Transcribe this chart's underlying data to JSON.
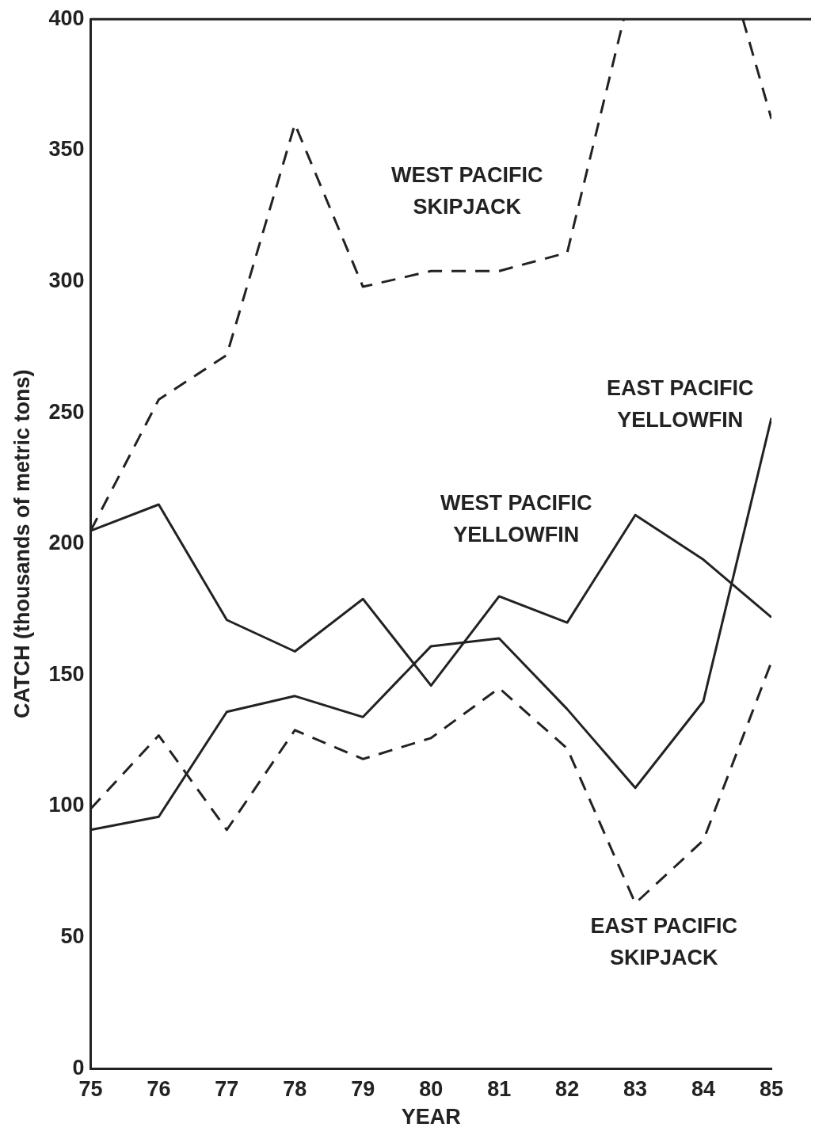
{
  "chart_data": {
    "type": "line",
    "xlabel": "YEAR",
    "ylabel": "CATCH (thousands of metric tons)",
    "x": [
      75,
      76,
      77,
      78,
      79,
      80,
      81,
      82,
      83,
      84,
      85
    ],
    "series": [
      {
        "name": "WEST PACIFIC SKIPJACK",
        "color": "#222222",
        "line_style": "dashed",
        "x": [
          75,
          76,
          77,
          78,
          79,
          80,
          81,
          82,
          82.83,
          83.7,
          84.58,
          85
        ],
        "values": [
          205,
          255,
          272,
          360,
          298,
          304,
          304,
          311,
          400,
          null,
          400,
          362
        ]
      },
      {
        "name": "EAST PACIFIC YELLOWFIN",
        "color": "#222222",
        "line_style": "solid",
        "values": [
          91,
          96,
          136,
          142,
          134,
          161,
          164,
          137,
          107,
          140,
          248
        ]
      },
      {
        "name": "WEST PACIFIC YELLOWFIN",
        "color": "#222222",
        "line_style": "solid",
        "values": [
          205,
          215,
          171,
          159,
          179,
          146,
          180,
          170,
          211,
          194,
          172
        ]
      },
      {
        "name": "EAST PACIFIC SKIPJACK",
        "color": "#222222",
        "line_style": "dashed",
        "values": [
          99,
          127,
          91,
          129,
          118,
          126,
          145,
          122,
          63,
          87,
          155
        ]
      }
    ],
    "xlim": [
      75,
      85
    ],
    "xticks": [
      75,
      76,
      77,
      78,
      79,
      80,
      81,
      82,
      83,
      84,
      85
    ],
    "ylim": [
      0,
      400
    ],
    "yticks": [
      0,
      50,
      100,
      150,
      200,
      250,
      300,
      350,
      400
    ],
    "grid": false,
    "legend": false,
    "marker": "none"
  }
}
